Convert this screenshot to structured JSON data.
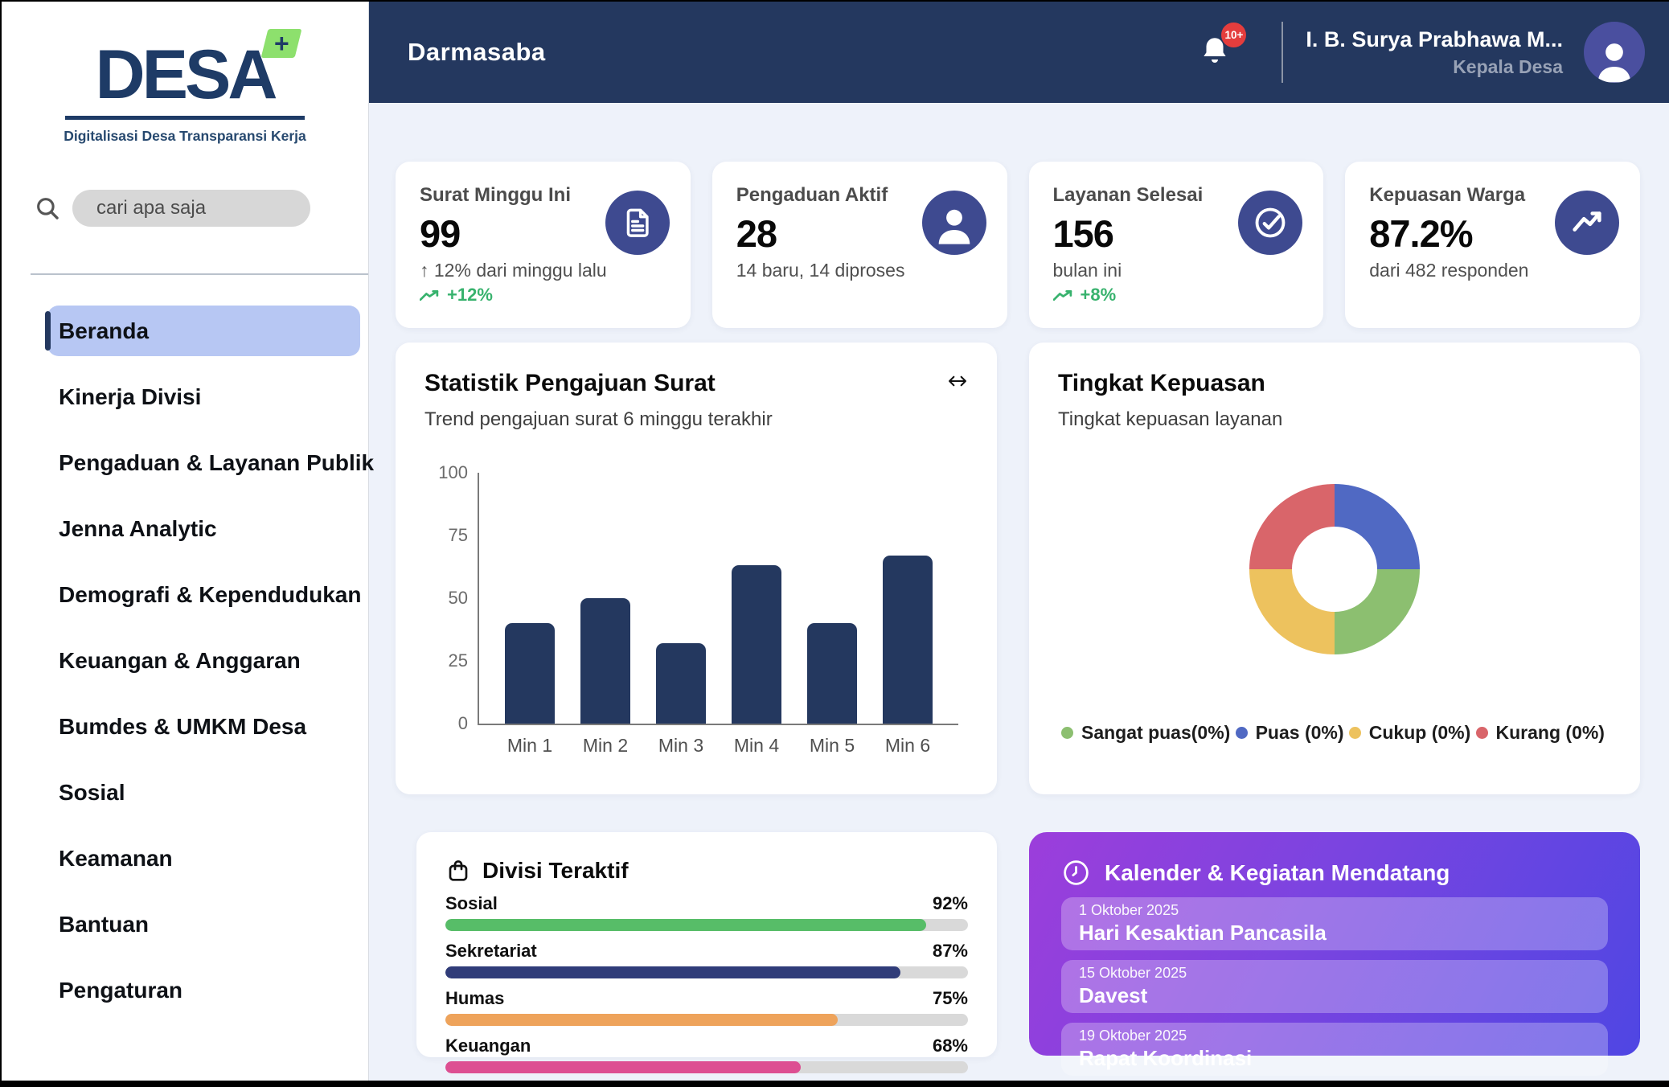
{
  "colors": {
    "header_bg": "#24385f",
    "main_bg": "#eef2fa",
    "icon_circle": "#3e4a90",
    "avatar_bg": "#4a4f9f",
    "active_menu_bg": "#b7c7f3",
    "positive_green": "#37b26d",
    "notification_badge": "#e43d3d",
    "calendar_gradient": [
      "#9c3edb",
      "#4f46e3"
    ]
  },
  "sidebar": {
    "logo": {
      "text": "DESA",
      "plus": "+",
      "tagline": "Digitalisasi Desa Transparansi Kerja"
    },
    "search": {
      "placeholder": "cari apa saja"
    },
    "menu": [
      {
        "label": "Beranda",
        "active": true
      },
      {
        "label": "Kinerja Divisi",
        "active": false
      },
      {
        "label": "Pengaduan & Layanan Publik",
        "active": false
      },
      {
        "label": "Jenna Analytic",
        "active": false
      },
      {
        "label": "Demografi & Kependudukan",
        "active": false
      },
      {
        "label": "Keuangan & Anggaran",
        "active": false
      },
      {
        "label": "Bumdes & UMKM Desa",
        "active": false
      },
      {
        "label": "Sosial",
        "active": false
      },
      {
        "label": "Keamanan",
        "active": false
      },
      {
        "label": "Bantuan",
        "active": false
      },
      {
        "label": "Pengaturan",
        "active": false
      }
    ]
  },
  "header": {
    "title": "Darmasaba",
    "notifications": {
      "badge": "10+"
    },
    "user": {
      "name": "I. B. Surya Prabhawa M...",
      "role": "Kepala Desa"
    }
  },
  "stat_cards": [
    {
      "title": "Surat Minggu Ini",
      "value": "99",
      "sub": "↑ 12% dari minggu lalu",
      "delta": "+12%",
      "icon": "document-icon"
    },
    {
      "title": "Pengaduan Aktif",
      "value": "28",
      "sub": "14 baru, 14 diproses",
      "icon": "person-icon"
    },
    {
      "title": "Layanan Selesai",
      "value": "156",
      "sub": "bulan ini",
      "delta": "+8%",
      "icon": "check-circle-icon"
    },
    {
      "title": "Kepuasan Warga",
      "value": "87.2%",
      "sub": "dari 482 responden",
      "icon": "trending-up-icon"
    }
  ],
  "chart_data": [
    {
      "type": "bar",
      "title": "Statistik Pengajuan Surat",
      "subtitle": "Trend pengajuan surat 6 minggu terakhir",
      "categories": [
        "Min 1",
        "Min 2",
        "Min 3",
        "Min 4",
        "Min 5",
        "Min 6"
      ],
      "values": [
        40,
        50,
        32,
        63,
        40,
        67
      ],
      "xlabel": "",
      "ylabel": "",
      "ylim": [
        0,
        100
      ],
      "yticks": [
        0,
        25,
        50,
        75,
        100
      ],
      "bar_color": "#24385f",
      "grid": false,
      "legend_position": "none"
    },
    {
      "type": "pie",
      "subtype": "donut",
      "title": "Tingkat Kepuasan",
      "subtitle": "Tingkat kepuasan layanan",
      "segments": [
        {
          "label": "Sangat puas(0%)",
          "color": "#8cbf70",
          "value_pct": 0,
          "visual_pct": 25
        },
        {
          "label": "Puas (0%)",
          "color": "#5069c3",
          "value_pct": 0,
          "visual_pct": 25
        },
        {
          "label": "Cukup (0%)",
          "color": "#edc25e",
          "value_pct": 0,
          "visual_pct": 25
        },
        {
          "label": "Kurang (0%)",
          "color": "#d9656a",
          "value_pct": 0,
          "visual_pct": 25
        }
      ],
      "wheel_order_clockwise_from_top": [
        1,
        0,
        2,
        3
      ],
      "legend_position": "bottom"
    },
    {
      "type": "bar",
      "subtype": "horizontal-progress",
      "title": "Divisi Teraktif",
      "categories": [
        "Sosial",
        "Sekretariat",
        "Humas",
        "Keuangan"
      ],
      "values": [
        92,
        87,
        75,
        68
      ],
      "ylim": [
        0,
        100
      ]
    }
  ],
  "divisi": {
    "title": "Divisi Teraktif",
    "rows": [
      {
        "label": "Sosial",
        "pct": 92,
        "pct_label": "92%",
        "color": "#57bd68"
      },
      {
        "label": "Sekretariat",
        "pct": 87,
        "pct_label": "87%",
        "color": "#303c79"
      },
      {
        "label": "Humas",
        "pct": 75,
        "pct_label": "75%",
        "color": "#eea35b"
      },
      {
        "label": "Keuangan",
        "pct": 68,
        "pct_label": "68%",
        "color": "#dd4f92"
      }
    ]
  },
  "calendar": {
    "title": "Kalender & Kegiatan Mendatang",
    "events": [
      {
        "date": "1 Oktober 2025",
        "name": "Hari Kesaktian Pancasila"
      },
      {
        "date": "15 Oktober 2025",
        "name": "Davest"
      },
      {
        "date": "19 Oktober 2025",
        "name": "Rapat Koordinasi"
      }
    ]
  }
}
